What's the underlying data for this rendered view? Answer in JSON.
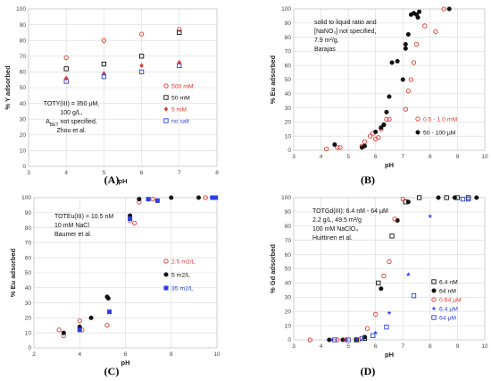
{
  "panels": [
    {
      "id": "A",
      "label": "(A)"
    },
    {
      "id": "B",
      "label": "(B)"
    },
    {
      "id": "C",
      "label": "(C)"
    },
    {
      "id": "D",
      "label": "(D)"
    }
  ],
  "colors": {
    "red": "#e03c31",
    "black": "#111111",
    "blue": "#2b3fe0",
    "gridline": "#d9d9d9"
  },
  "chart_data": [
    {
      "id": "A",
      "type": "scatter",
      "xlabel": "pH",
      "ylabel": "% Y adsorbed",
      "xlim": [
        3,
        8
      ],
      "ylim": [
        0,
        100
      ],
      "xticks": [
        3,
        4,
        5,
        6,
        7,
        8
      ],
      "yticks": [
        0,
        10,
        20,
        30,
        40,
        50,
        60,
        70,
        80,
        90,
        100
      ],
      "grid": true,
      "annotation": [
        "TOTY(III) = 350 µM,",
        "100 g/L,",
        "A_BET not specified,",
        "Zhou et al."
      ],
      "legend_placement": "right",
      "series": [
        {
          "name": "500 mM",
          "marker": "circle-open",
          "color": "#e03c31",
          "x": [
            4,
            5,
            6,
            7
          ],
          "y": [
            69,
            80,
            84,
            87
          ]
        },
        {
          "name": "50 mM",
          "marker": "square-open",
          "color": "#111111",
          "x": [
            4,
            5,
            6,
            7
          ],
          "y": [
            62,
            65,
            70,
            85
          ]
        },
        {
          "name": "5 mM",
          "marker": "diamond-filled",
          "color": "#e03c31",
          "x": [
            4,
            5,
            6,
            7
          ],
          "y": [
            56,
            59,
            64,
            66
          ]
        },
        {
          "name": "no salt",
          "marker": "square-open",
          "color": "#2b3fe0",
          "x": [
            4,
            5,
            6,
            7
          ],
          "y": [
            54,
            57,
            60,
            64
          ]
        }
      ]
    },
    {
      "id": "B",
      "type": "scatter",
      "xlabel": "pH",
      "ylabel": "% Eu adsorbed",
      "xlim": [
        3,
        10
      ],
      "ylim": [
        0,
        100
      ],
      "xticks": [
        3,
        4,
        5,
        6,
        7,
        8,
        9,
        10
      ],
      "yticks": [
        0,
        10,
        20,
        30,
        40,
        50,
        60,
        70,
        80,
        90,
        100
      ],
      "grid": true,
      "annotation": [
        "solid to liquid ratio and",
        "[NaNO₃] not specified,",
        "7.9 m²/g,",
        "Barajas"
      ],
      "legend_placement": "bottom-right",
      "series": [
        {
          "name": "0.5 - 1.0 mM",
          "marker": "circle-open",
          "color": "#e03c31",
          "x": [
            4.2,
            4.6,
            4.7,
            5.5,
            5.6,
            5.8,
            5.9,
            6.0,
            6.1,
            6.2,
            6.3,
            6.4,
            6.5,
            7.1,
            7.2,
            7.3,
            7.4,
            7.5,
            7.8,
            8.2,
            8.5
          ],
          "y": [
            1,
            2,
            2,
            3,
            6,
            10,
            12,
            8,
            9,
            15,
            18,
            22,
            22,
            29,
            42,
            50,
            62,
            75,
            88,
            84,
            100
          ]
        },
        {
          "name": "50 - 100 µM",
          "marker": "circle-filled",
          "color": "#111111",
          "x": [
            4.5,
            5.5,
            5.6,
            6.0,
            6.2,
            6.3,
            6.4,
            6.5,
            6.6,
            6.8,
            7.0,
            7.1,
            7.1,
            7.2,
            7.3,
            7.4,
            7.5,
            7.55,
            7.6,
            8.7
          ],
          "y": [
            4,
            2,
            3,
            13,
            16,
            18,
            27,
            38,
            62,
            63,
            50,
            72,
            75,
            82,
            96,
            97,
            96,
            94,
            98,
            100
          ]
        }
      ]
    },
    {
      "id": "C",
      "type": "scatter",
      "xlabel": "pH",
      "ylabel": "% Eu adsorbed",
      "xlim": [
        2,
        10
      ],
      "ylim": [
        0,
        100
      ],
      "xticks": [
        2,
        4,
        6,
        8,
        10
      ],
      "yticks": [
        0,
        10,
        20,
        30,
        40,
        50,
        60,
        70,
        80,
        90,
        100
      ],
      "grid": true,
      "annotation": [
        "TOTEu(III) = 10.5 nM",
        "10 mM NaCl",
        "Baumer et al."
      ],
      "legend_placement": "right",
      "series": [
        {
          "name": "2.5 m2/L",
          "marker": "circle-open",
          "color": "#e03c31",
          "x": [
            3.1,
            3.3,
            4.0,
            4.1,
            5.2,
            6.2,
            6.4,
            6.6,
            7.2,
            9.5
          ],
          "y": [
            12,
            8,
            18,
            12,
            15,
            85,
            83,
            97,
            99,
            100
          ]
        },
        {
          "name": "5 m2/L",
          "marker": "circle-filled",
          "color": "#111111",
          "x": [
            3.3,
            4.0,
            4.5,
            5.2,
            5.25,
            6.2,
            6.6,
            8.0,
            9.2,
            9.8
          ],
          "y": [
            10,
            14,
            20,
            34,
            33,
            88,
            99,
            100,
            100,
            100
          ]
        },
        {
          "name": "35 m2/L",
          "marker": "square-filled",
          "color": "#2b3fe0",
          "x": [
            4.0,
            5.3,
            6.2,
            7.0,
            7.4,
            9.8,
            9.95
          ],
          "y": [
            12,
            24,
            86,
            99,
            98,
            100,
            100
          ]
        }
      ]
    },
    {
      "id": "D",
      "type": "scatter",
      "xlabel": "pH",
      "ylabel": "% Gd adsorbed",
      "xlim": [
        3,
        10
      ],
      "ylim": [
        0,
        100
      ],
      "xticks": [
        3,
        4,
        5,
        6,
        7,
        8,
        9,
        10
      ],
      "yticks": [
        0,
        10,
        20,
        30,
        40,
        50,
        60,
        70,
        80,
        90,
        100
      ],
      "grid": true,
      "annotation": [
        "TOTGd(III): 6.4 nM - 64 µM",
        "2.2 g/L, 49.5 m²/g",
        "100 mM NaClO₄",
        "Huittinen et al."
      ],
      "legend_placement": "right",
      "series": [
        {
          "name": "6.4 nM",
          "marker": "square-open",
          "color": "#111111",
          "x": [
            5.3,
            5.6,
            6.1,
            6.6,
            7.1,
            7.6,
            8.6,
            9.0,
            9.4
          ],
          "y": [
            0,
            1,
            40,
            73,
            97,
            100,
            100,
            100,
            100
          ]
        },
        {
          "name": "64 nM",
          "marker": "circle-filled",
          "color": "#111111",
          "x": [
            4.3,
            4.8,
            5.3,
            5.6,
            6.2,
            6.8,
            7.2,
            8.3,
            8.9,
            9.7
          ],
          "y": [
            0,
            0,
            0,
            2,
            36,
            84,
            97,
            100,
            100,
            100
          ]
        },
        {
          "name": "0.64 µM",
          "marker": "circle-open",
          "color": "#e03c31",
          "x": [
            3.6,
            4.6,
            4.9,
            5.4,
            5.7,
            6.0,
            6.3,
            6.5,
            6.7,
            7.0
          ],
          "y": [
            0,
            0,
            0,
            0,
            8,
            18,
            45,
            55,
            85,
            99
          ]
        },
        {
          "name": "6.4 µM",
          "marker": "star",
          "color": "#2b3fe0",
          "x": [
            4.4,
            4.9,
            5.3,
            6.0,
            6.5,
            7.2,
            8.0
          ],
          "y": [
            0,
            0,
            0,
            5,
            19,
            46,
            87
          ]
        },
        {
          "name": "64 µM",
          "marker": "square-open",
          "color": "#2b3fe0",
          "x": [
            4.5,
            5.0,
            5.5,
            5.9,
            6.4,
            7.4,
            9.2,
            9.4
          ],
          "y": [
            0,
            0,
            1,
            3,
            9,
            31,
            99,
            99
          ]
        }
      ]
    }
  ]
}
